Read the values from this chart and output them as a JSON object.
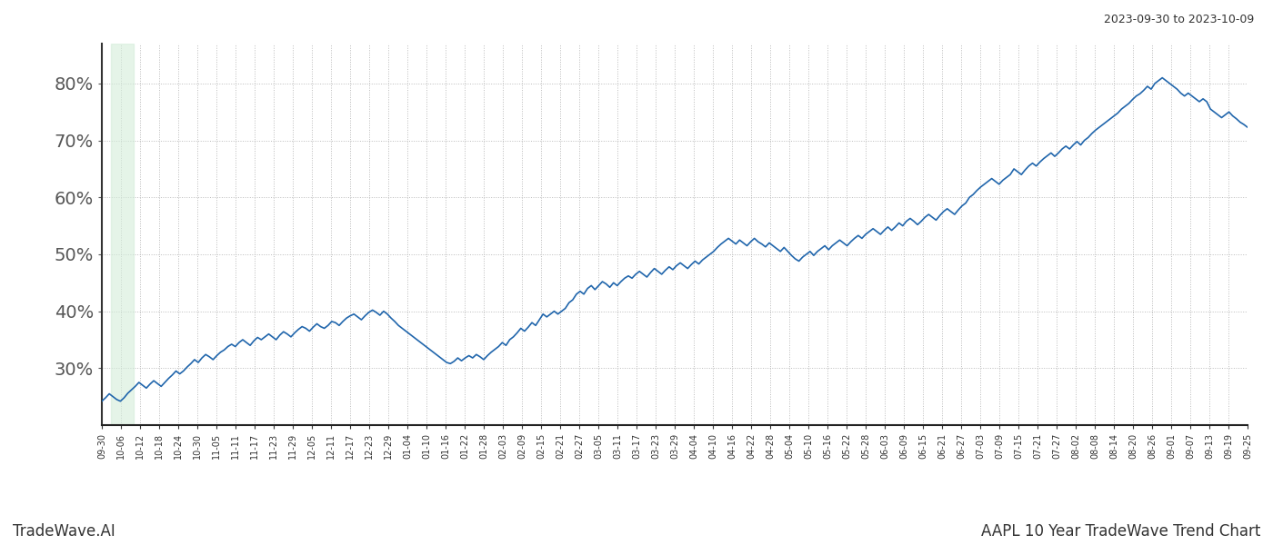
{
  "title_top_right": "2023-09-30 to 2023-10-09",
  "title_bottom_left": "TradeWave.AI",
  "title_bottom_right": "AAPL 10 Year TradeWave Trend Chart",
  "line_color": "#2166ac",
  "line_width": 1.2,
  "highlight_color": "#d4edda",
  "highlight_alpha": 0.6,
  "background_color": "#ffffff",
  "grid_color": "#bbbbbb",
  "grid_style": ":",
  "ylim": [
    20,
    87
  ],
  "yticks": [
    30,
    40,
    50,
    60,
    70,
    80
  ],
  "ytick_fontsize": 14,
  "ytick_color": "#555555",
  "xtick_fontsize": 7,
  "x_labels": [
    "09-30",
    "10-06",
    "10-12",
    "10-18",
    "10-24",
    "10-30",
    "11-05",
    "11-11",
    "11-17",
    "11-23",
    "11-29",
    "12-05",
    "12-11",
    "12-17",
    "12-23",
    "12-29",
    "01-04",
    "01-10",
    "01-16",
    "01-22",
    "01-28",
    "02-03",
    "02-09",
    "02-15",
    "02-21",
    "02-27",
    "03-05",
    "03-11",
    "03-17",
    "03-23",
    "03-29",
    "04-04",
    "04-10",
    "04-16",
    "04-22",
    "04-28",
    "05-04",
    "05-10",
    "05-16",
    "05-22",
    "05-28",
    "06-03",
    "06-09",
    "06-15",
    "06-21",
    "06-27",
    "07-03",
    "07-09",
    "07-15",
    "07-21",
    "07-27",
    "08-02",
    "08-08",
    "08-14",
    "08-20",
    "08-26",
    "09-01",
    "09-07",
    "09-13",
    "09-19",
    "09-25"
  ],
  "highlight_xstart": 0.008,
  "highlight_xend": 0.028,
  "values": [
    24.2,
    24.8,
    25.5,
    25.0,
    24.5,
    24.2,
    24.8,
    25.6,
    26.2,
    26.8,
    27.5,
    27.0,
    26.5,
    27.2,
    27.8,
    27.3,
    26.8,
    27.5,
    28.2,
    28.8,
    29.5,
    29.0,
    29.5,
    30.2,
    30.8,
    31.5,
    31.0,
    31.8,
    32.4,
    32.0,
    31.5,
    32.2,
    32.8,
    33.2,
    33.8,
    34.2,
    33.8,
    34.5,
    35.0,
    34.5,
    34.0,
    34.8,
    35.4,
    35.0,
    35.5,
    36.0,
    35.5,
    35.0,
    35.8,
    36.4,
    36.0,
    35.5,
    36.2,
    36.8,
    37.3,
    37.0,
    36.5,
    37.2,
    37.8,
    37.3,
    37.0,
    37.5,
    38.2,
    38.0,
    37.5,
    38.2,
    38.8,
    39.2,
    39.5,
    39.0,
    38.5,
    39.2,
    39.8,
    40.2,
    39.8,
    39.3,
    40.0,
    39.5,
    38.8,
    38.2,
    37.5,
    37.0,
    36.5,
    36.0,
    35.5,
    35.0,
    34.5,
    34.0,
    33.5,
    33.0,
    32.5,
    32.0,
    31.5,
    31.0,
    30.8,
    31.2,
    31.8,
    31.3,
    31.8,
    32.2,
    31.8,
    32.4,
    32.0,
    31.5,
    32.2,
    32.8,
    33.3,
    33.8,
    34.5,
    34.0,
    35.0,
    35.5,
    36.2,
    37.0,
    36.5,
    37.2,
    38.0,
    37.5,
    38.5,
    39.5,
    39.0,
    39.5,
    40.0,
    39.5,
    40.0,
    40.5,
    41.5,
    42.0,
    43.0,
    43.5,
    43.0,
    44.0,
    44.5,
    43.8,
    44.5,
    45.2,
    44.8,
    44.2,
    45.0,
    44.5,
    45.2,
    45.8,
    46.2,
    45.8,
    46.5,
    47.0,
    46.5,
    46.0,
    46.8,
    47.5,
    47.0,
    46.5,
    47.2,
    47.8,
    47.3,
    48.0,
    48.5,
    48.0,
    47.5,
    48.2,
    48.8,
    48.3,
    49.0,
    49.5,
    50.0,
    50.5,
    51.2,
    51.8,
    52.3,
    52.8,
    52.3,
    51.8,
    52.5,
    52.0,
    51.5,
    52.2,
    52.8,
    52.2,
    51.8,
    51.3,
    52.0,
    51.5,
    51.0,
    50.5,
    51.2,
    50.5,
    49.8,
    49.2,
    48.8,
    49.5,
    50.0,
    50.5,
    49.8,
    50.5,
    51.0,
    51.5,
    50.8,
    51.5,
    52.0,
    52.5,
    52.0,
    51.5,
    52.2,
    52.8,
    53.3,
    52.8,
    53.5,
    54.0,
    54.5,
    54.0,
    53.5,
    54.2,
    54.8,
    54.2,
    54.8,
    55.5,
    55.0,
    55.8,
    56.3,
    55.8,
    55.2,
    55.8,
    56.5,
    57.0,
    56.5,
    56.0,
    56.8,
    57.5,
    58.0,
    57.5,
    57.0,
    57.8,
    58.5,
    59.0,
    60.0,
    60.5,
    61.2,
    61.8,
    62.3,
    62.8,
    63.3,
    62.8,
    62.3,
    63.0,
    63.5,
    64.0,
    65.0,
    64.5,
    64.0,
    64.8,
    65.5,
    66.0,
    65.5,
    66.2,
    66.8,
    67.3,
    67.8,
    67.2,
    67.8,
    68.5,
    69.0,
    68.5,
    69.2,
    69.8,
    69.2,
    70.0,
    70.5,
    71.2,
    71.8,
    72.3,
    72.8,
    73.3,
    73.8,
    74.3,
    74.8,
    75.5,
    76.0,
    76.5,
    77.2,
    77.8,
    78.2,
    78.8,
    79.5,
    79.0,
    80.0,
    80.5,
    81.0,
    80.5,
    80.0,
    79.5,
    79.0,
    78.3,
    77.8,
    78.3,
    77.8,
    77.3,
    76.8,
    77.3,
    76.8,
    75.5,
    75.0,
    74.5,
    74.0,
    74.5,
    75.0,
    74.3,
    73.8,
    73.2,
    72.8,
    72.3
  ]
}
